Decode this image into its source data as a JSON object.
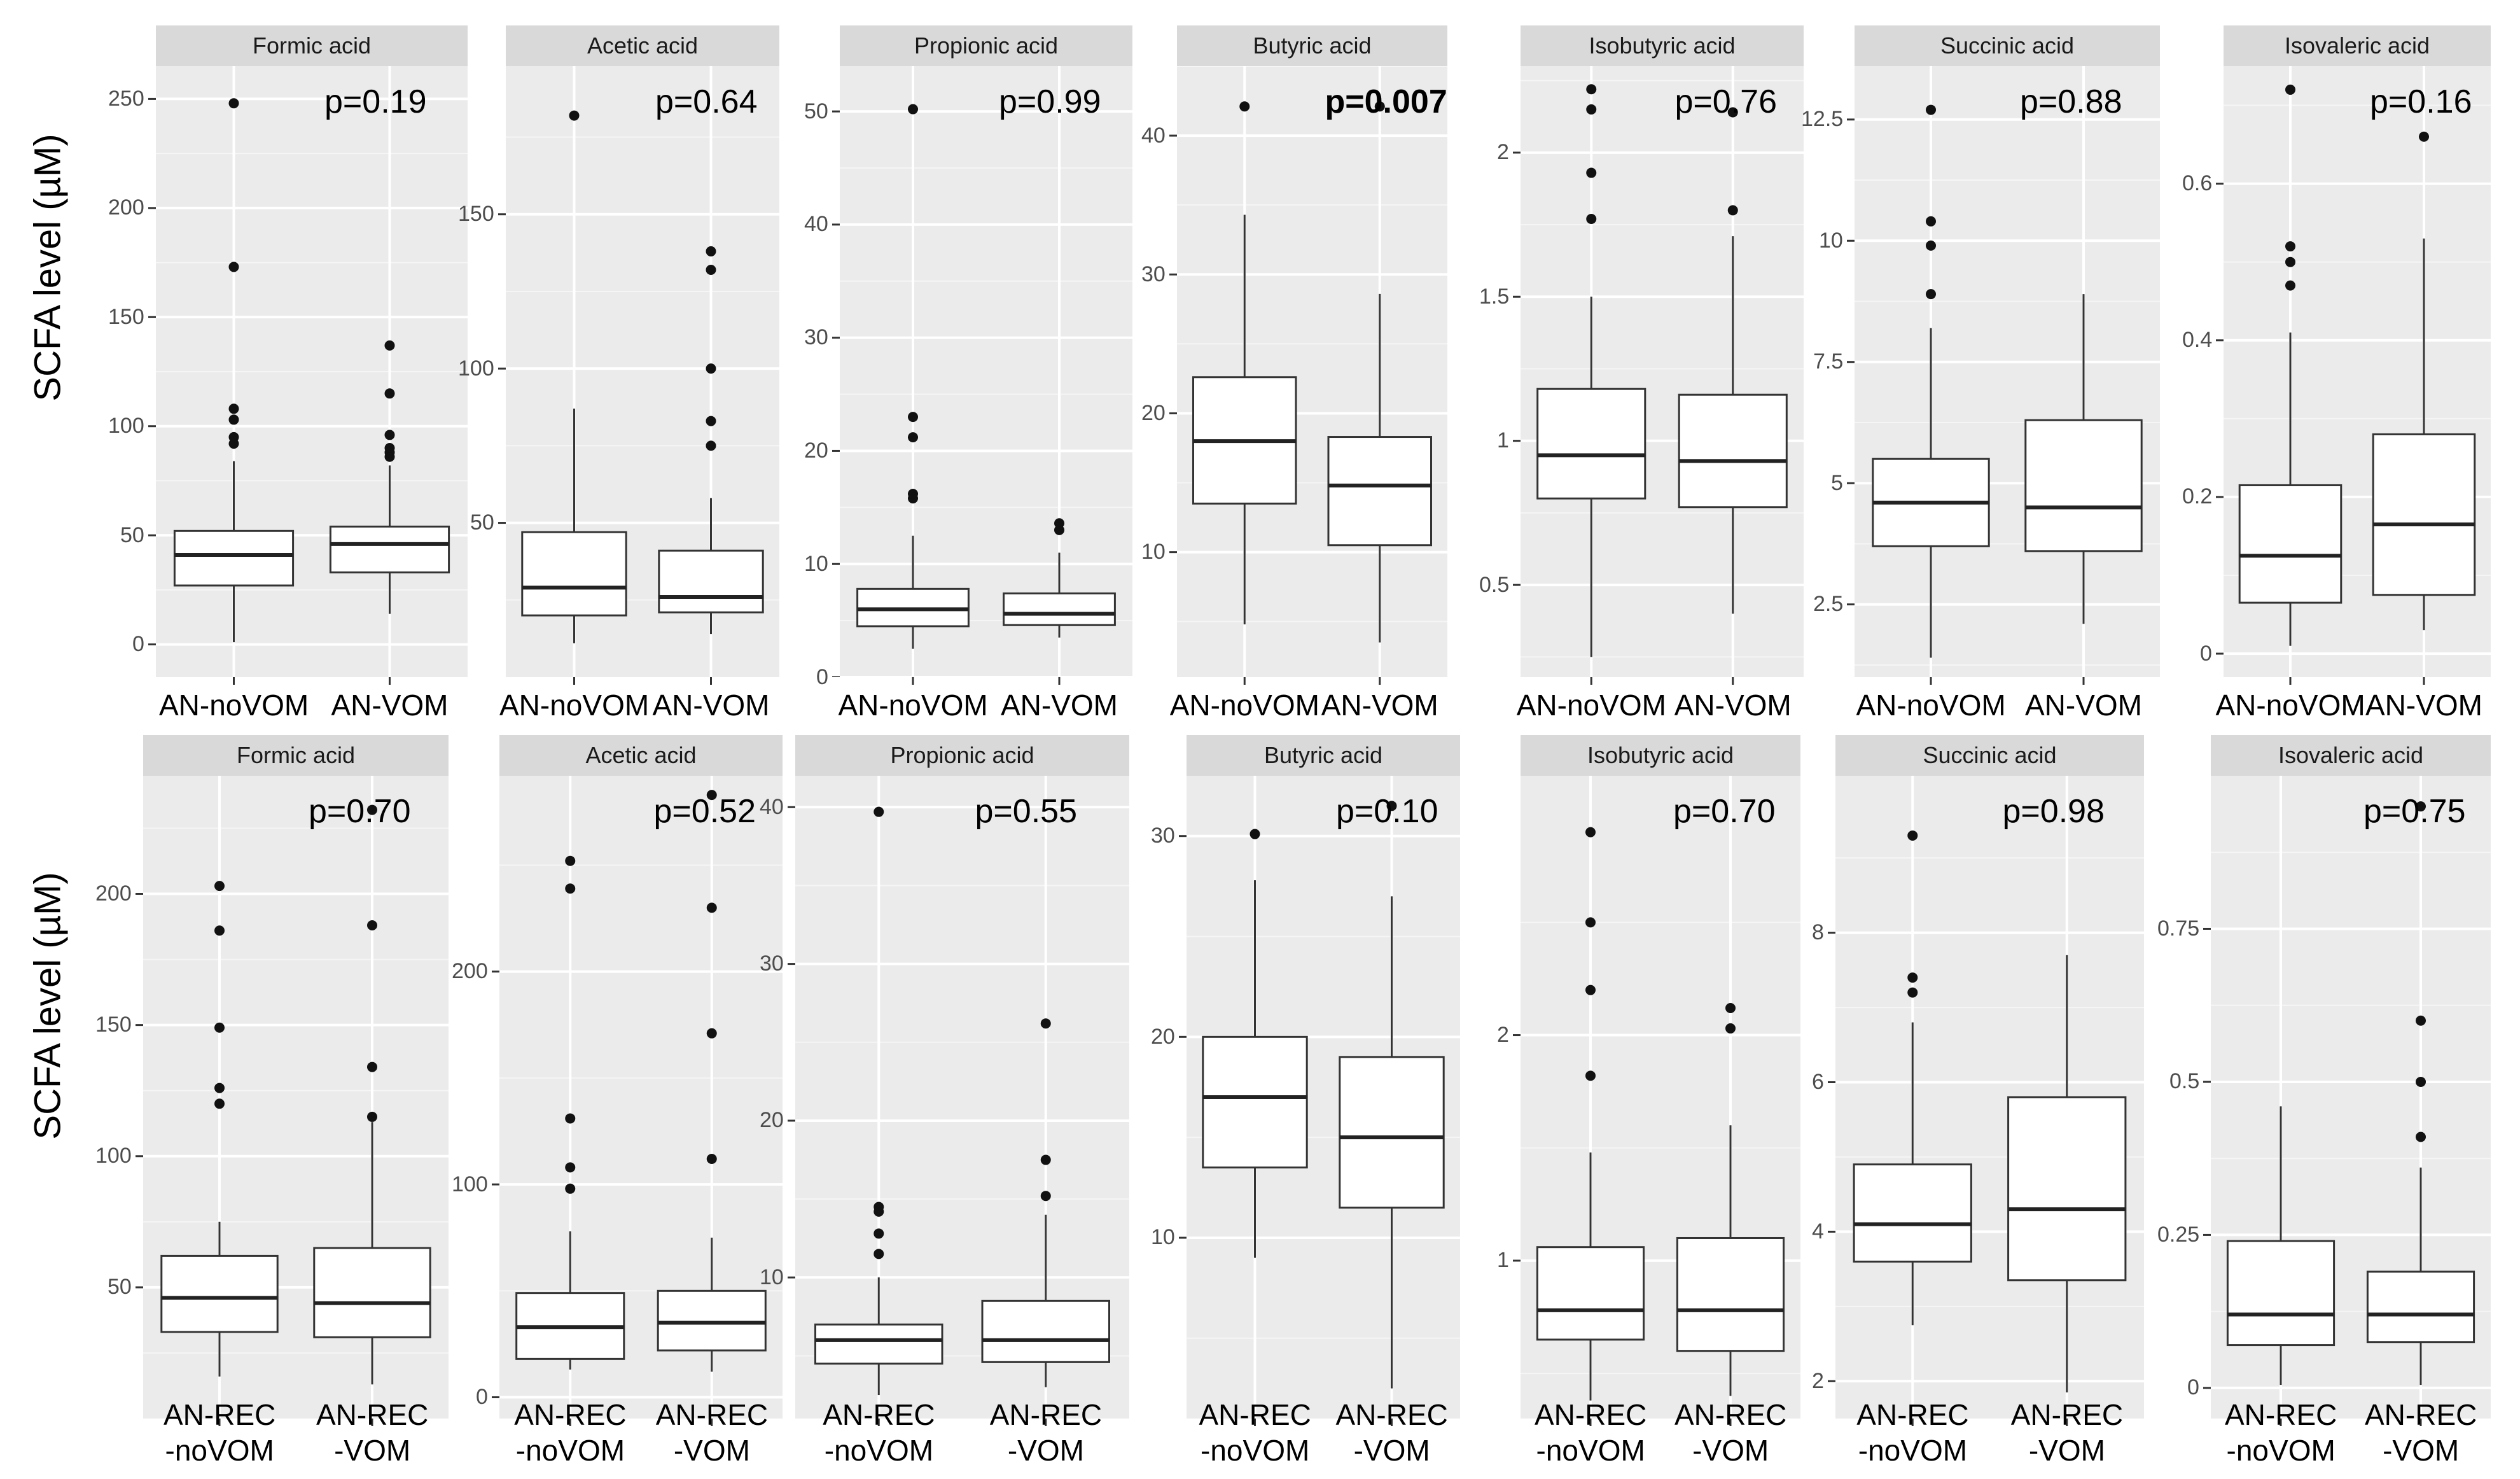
{
  "chart_data": [
    {
      "type": "box",
      "row": "top",
      "ylabel": "SCFA level (µM)",
      "groups": [
        "AN-noVOM",
        "AN-VOM"
      ],
      "panels": [
        {
          "title": "Formic acid",
          "p_value": "p=0.19",
          "p_bold": false,
          "ylim": [
            -15,
            265
          ],
          "yticks": [
            0,
            50,
            100,
            150,
            200,
            250
          ],
          "boxes": [
            {
              "group": "AN-noVOM",
              "min": 1,
              "q1": 27,
              "median": 41,
              "q3": 52,
              "max": 84,
              "outliers": [
                92,
                95,
                103,
                108,
                173,
                248
              ]
            },
            {
              "group": "AN-VOM",
              "min": 14,
              "q1": 33,
              "median": 46,
              "q3": 54,
              "max": 82,
              "outliers": [
                86,
                88,
                90,
                96,
                115,
                137
              ]
            }
          ]
        },
        {
          "title": "Acetic acid",
          "p_value": "p=0.64",
          "p_bold": false,
          "ylim": [
            0,
            198
          ],
          "yticks": [
            50,
            100,
            150
          ],
          "boxes": [
            {
              "group": "AN-noVOM",
              "min": 11,
              "q1": 20,
              "median": 29,
              "q3": 47,
              "max": 87,
              "outliers": [
                182
              ]
            },
            {
              "group": "AN-VOM",
              "min": 14,
              "q1": 21,
              "median": 26,
              "q3": 41,
              "max": 58,
              "outliers": [
                75,
                83,
                100,
                132,
                138
              ]
            }
          ]
        },
        {
          "title": "Propionic acid",
          "p_value": "p=0.99",
          "p_bold": false,
          "ylim": [
            0,
            54
          ],
          "yticks": [
            0,
            10,
            20,
            30,
            40,
            50
          ],
          "boxes": [
            {
              "group": "AN-noVOM",
              "min": 2.5,
              "q1": 4.5,
              "median": 6,
              "q3": 7.8,
              "max": 12.5,
              "outliers": [
                15.8,
                16.2,
                21.2,
                23,
                50.2
              ]
            },
            {
              "group": "AN-VOM",
              "min": 3.5,
              "q1": 4.6,
              "median": 5.6,
              "q3": 7.4,
              "max": 11,
              "outliers": [
                13,
                13.6
              ]
            }
          ]
        },
        {
          "title": "Butyric acid",
          "p_value": "p=0.0073",
          "p_bold": true,
          "ylim": [
            1,
            45
          ],
          "yticks": [
            10,
            20,
            30,
            40
          ],
          "boxes": [
            {
              "group": "AN-noVOM",
              "min": 4.8,
              "q1": 13.5,
              "median": 18,
              "q3": 22.6,
              "max": 34.3,
              "outliers": [
                42.1
              ]
            },
            {
              "group": "AN-VOM",
              "min": 3.5,
              "q1": 10.5,
              "median": 14.8,
              "q3": 18.3,
              "max": 28.6,
              "outliers": [
                42.1
              ]
            }
          ]
        },
        {
          "title": "Isobutyric acid",
          "p_value": "p=0.76",
          "p_bold": false,
          "ylim": [
            0.18,
            2.3
          ],
          "yticks": [
            0.5,
            1.0,
            1.5,
            2.0
          ],
          "boxes": [
            {
              "group": "AN-noVOM",
              "min": 0.25,
              "q1": 0.8,
              "median": 0.95,
              "q3": 1.18,
              "max": 1.5,
              "outliers": [
                1.77,
                1.93,
                2.15,
                2.22
              ]
            },
            {
              "group": "AN-VOM",
              "min": 0.4,
              "q1": 0.77,
              "median": 0.93,
              "q3": 1.16,
              "max": 1.71,
              "outliers": [
                1.8,
                2.14
              ]
            }
          ]
        },
        {
          "title": "Succinic acid",
          "p_value": "p=0.88",
          "p_bold": false,
          "ylim": [
            1,
            13.6
          ],
          "yticks": [
            2.5,
            5.0,
            7.5,
            10.0,
            12.5
          ],
          "boxes": [
            {
              "group": "AN-noVOM",
              "min": 1.4,
              "q1": 3.7,
              "median": 4.6,
              "q3": 5.5,
              "max": 8.2,
              "outliers": [
                8.9,
                9.9,
                10.4,
                12.7
              ]
            },
            {
              "group": "AN-VOM",
              "min": 2.1,
              "q1": 3.6,
              "median": 4.5,
              "q3": 6.3,
              "max": 8.9,
              "outliers": []
            }
          ]
        },
        {
          "title": "Isovaleric acid",
          "p_value": "p=0.16",
          "p_bold": false,
          "ylim": [
            -0.03,
            0.75
          ],
          "yticks": [
            0.0,
            0.2,
            0.4,
            0.6
          ],
          "boxes": [
            {
              "group": "AN-noVOM",
              "min": 0.01,
              "q1": 0.065,
              "median": 0.125,
              "q3": 0.215,
              "max": 0.41,
              "outliers": [
                0.47,
                0.5,
                0.52,
                0.72
              ]
            },
            {
              "group": "AN-VOM",
              "min": 0.03,
              "q1": 0.075,
              "median": 0.165,
              "q3": 0.28,
              "max": 0.53,
              "outliers": [
                0.66
              ]
            }
          ]
        }
      ]
    },
    {
      "type": "box",
      "row": "bottom",
      "ylabel": "SCFA level (µM)",
      "groups": [
        "AN-REC\n-noVOM",
        "AN-REC\n-VOM"
      ],
      "panels": [
        {
          "title": "Formic acid",
          "p_value": "p=0.70",
          "p_bold": false,
          "ylim": [
            0,
            245
          ],
          "yticks": [
            50,
            100,
            150,
            200
          ],
          "boxes": [
            {
              "group": "AN-REC-noVOM",
              "min": 16,
              "q1": 33,
              "median": 46,
              "q3": 62,
              "max": 75,
              "outliers": [
                120,
                126,
                149,
                186,
                203
              ]
            },
            {
              "group": "AN-REC-VOM",
              "min": 13,
              "q1": 31,
              "median": 44,
              "q3": 65,
              "max": 113,
              "outliers": [
                115,
                134,
                188,
                232
              ]
            }
          ]
        },
        {
          "title": "Acetic acid",
          "p_value": "p=0.52",
          "p_bold": false,
          "ylim": [
            -10,
            292
          ],
          "yticks": [
            0,
            100,
            200
          ],
          "boxes": [
            {
              "group": "AN-REC-noVOM",
              "min": 13,
              "q1": 18,
              "median": 33,
              "q3": 49,
              "max": 78,
              "outliers": [
                98,
                108,
                131,
                239,
                252
              ]
            },
            {
              "group": "AN-REC-VOM",
              "min": 12,
              "q1": 22,
              "median": 35,
              "q3": 50,
              "max": 75,
              "outliers": [
                112,
                171,
                230,
                283
              ]
            }
          ]
        },
        {
          "title": "Propionic acid",
          "p_value": "p=0.55",
          "p_bold": false,
          "ylim": [
            1,
            42
          ],
          "yticks": [
            10,
            20,
            30,
            40
          ],
          "boxes": [
            {
              "group": "AN-REC-noVOM",
              "min": 2.5,
              "q1": 4.5,
              "median": 6,
              "q3": 7,
              "max": 10,
              "outliers": [
                11.5,
                12.8,
                14.2,
                14.5,
                39.7
              ]
            },
            {
              "group": "AN-REC-VOM",
              "min": 3,
              "q1": 4.6,
              "median": 6,
              "q3": 8.5,
              "max": 14,
              "outliers": [
                15.2,
                17.5,
                26.2
              ]
            }
          ]
        },
        {
          "title": "Butyric acid",
          "p_value": "p=0.10",
          "p_bold": false,
          "ylim": [
            1,
            33
          ],
          "yticks": [
            10,
            20,
            30
          ],
          "boxes": [
            {
              "group": "AN-REC-noVOM",
              "min": 9,
              "q1": 13.5,
              "median": 17,
              "q3": 20,
              "max": 27.8,
              "outliers": [
                30.1
              ]
            },
            {
              "group": "AN-REC-VOM",
              "min": 2.5,
              "q1": 11.5,
              "median": 15,
              "q3": 19,
              "max": 27,
              "outliers": [
                31.5
              ]
            }
          ]
        },
        {
          "title": "Isobutyric acid",
          "p_value": "p=0.70",
          "p_bold": false,
          "ylim": [
            0.3,
            3.15
          ],
          "yticks": [
            1,
            2
          ],
          "boxes": [
            {
              "group": "AN-REC-noVOM",
              "min": 0.38,
              "q1": 0.65,
              "median": 0.78,
              "q3": 1.06,
              "max": 1.48,
              "outliers": [
                1.82,
                2.2,
                2.5,
                2.9
              ]
            },
            {
              "group": "AN-REC-VOM",
              "min": 0.4,
              "q1": 0.6,
              "median": 0.78,
              "q3": 1.1,
              "max": 1.6,
              "outliers": [
                2.03,
                2.12
              ]
            }
          ]
        },
        {
          "title": "Succinic acid",
          "p_value": "p=0.98",
          "p_bold": false,
          "ylim": [
            1.5,
            10.1
          ],
          "yticks": [
            2,
            4,
            6,
            8
          ],
          "boxes": [
            {
              "group": "AN-REC-noVOM",
              "min": 2.75,
              "q1": 3.6,
              "median": 4.1,
              "q3": 4.9,
              "max": 6.8,
              "outliers": [
                7.2,
                7.4,
                9.3
              ]
            },
            {
              "group": "AN-REC-VOM",
              "min": 1.85,
              "q1": 3.35,
              "median": 4.3,
              "q3": 5.8,
              "max": 7.7,
              "outliers": []
            }
          ]
        },
        {
          "title": "Isovaleric acid",
          "p_value": "p=0.75",
          "p_bold": false,
          "ylim": [
            -0.05,
            1.0
          ],
          "yticks": [
            0.0,
            0.25,
            0.5,
            0.75
          ],
          "boxes": [
            {
              "group": "AN-REC-noVOM",
              "min": 0.005,
              "q1": 0.07,
              "median": 0.12,
              "q3": 0.24,
              "max": 0.46,
              "outliers": []
            },
            {
              "group": "AN-REC-VOM",
              "min": 0.005,
              "q1": 0.075,
              "median": 0.12,
              "q3": 0.19,
              "max": 0.36,
              "outliers": [
                0.41,
                0.5,
                0.6,
                0.95
              ]
            }
          ]
        }
      ]
    }
  ]
}
